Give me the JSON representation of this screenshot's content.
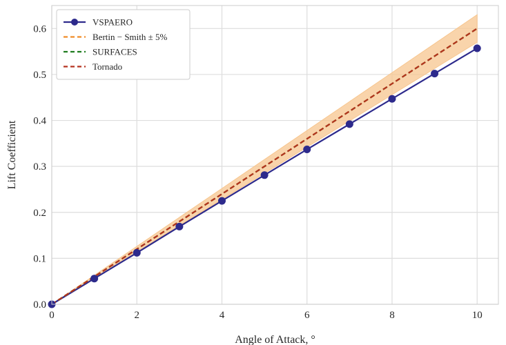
{
  "chart_data": {
    "type": "line",
    "title": "",
    "xlabel": "Angle of Attack, °",
    "ylabel": "Lift Coefficient",
    "xlim": [
      0,
      10.5
    ],
    "ylim": [
      0,
      0.65
    ],
    "xticks": [
      "0",
      "2",
      "4",
      "6",
      "8",
      "10"
    ],
    "yticks": [
      "0.0",
      "0.1",
      "0.2",
      "0.3",
      "0.4",
      "0.5",
      "0.6"
    ],
    "grid": true,
    "legend_position": "top-left",
    "x": [
      0,
      1,
      2,
      3,
      4,
      5,
      6,
      7,
      8,
      9,
      10
    ],
    "series": [
      {
        "name": "VSPAERO",
        "style": "solid line with circle markers",
        "color": "#2d2a8c",
        "values": [
          0.0,
          0.056,
          0.112,
          0.169,
          0.225,
          0.281,
          0.337,
          0.392,
          0.447,
          0.502,
          0.557
        ]
      },
      {
        "name": "Bertin − Smith ± 5%",
        "style": "dashed line with shaded ±5% band",
        "color": "#f08c28",
        "band_color": "#f7c68f",
        "band_fraction": 0.05,
        "values": [
          0.0,
          0.06,
          0.12,
          0.18,
          0.24,
          0.3,
          0.36,
          0.42,
          0.48,
          0.54,
          0.6
        ]
      },
      {
        "name": "SURFACES",
        "style": "dashed",
        "color": "#1e7b1e",
        "values": [
          0.0,
          0.06,
          0.12,
          0.18,
          0.24,
          0.3,
          0.36,
          0.42,
          0.48,
          0.54,
          0.6
        ]
      },
      {
        "name": "Tornado",
        "style": "dashed",
        "color": "#b5321e",
        "values": [
          0.0,
          0.06,
          0.12,
          0.18,
          0.24,
          0.3,
          0.36,
          0.42,
          0.48,
          0.54,
          0.6
        ]
      }
    ]
  }
}
